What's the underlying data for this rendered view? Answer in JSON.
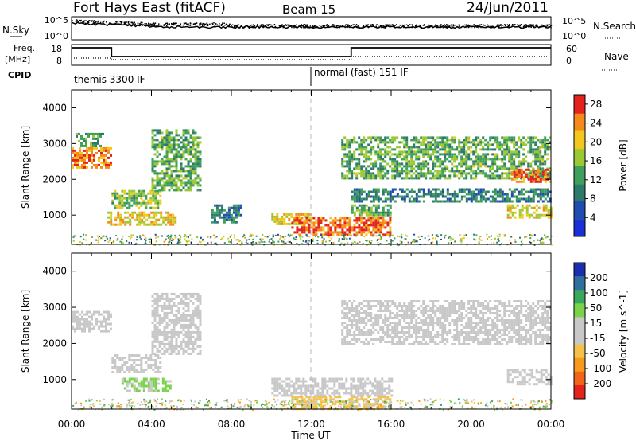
{
  "header": {
    "station": "Fort Hays East (fitACF)",
    "beam": "Beam 15",
    "date": "24/Jun/2011"
  },
  "noise_panel": {
    "left_label": "N.Sky",
    "right_label": "N.Search",
    "left_ticks": [
      "10^5",
      "10^0"
    ],
    "right_ticks": [
      "10^5",
      "10^0"
    ]
  },
  "freq_panel": {
    "left_label_top": "Freq.",
    "left_label_unit": "[MHz]",
    "cpid_label": "CPID",
    "right_label": "Nave",
    "left_ticks": [
      "18",
      "8"
    ],
    "right_ticks": [
      "60",
      "0"
    ]
  },
  "cpid": {
    "segments": [
      {
        "label": "themis 3300 IF",
        "start_hour": 0,
        "end_hour": 12
      },
      {
        "label": "normal (fast) 151 IF",
        "start_hour": 12,
        "end_hour": 24
      }
    ]
  },
  "time_axis": {
    "xlabel": "Time UT",
    "ticks": [
      "00:00",
      "04:00",
      "08:00",
      "12:00",
      "16:00",
      "20:00",
      "00:00"
    ]
  },
  "chart_data": [
    {
      "type": "heatmap",
      "name": "power",
      "ylabel": "Slant Range [km]",
      "x_range_hours": [
        0,
        24
      ],
      "ylim": [
        180,
        4500
      ],
      "y_ticks": [
        1000,
        2000,
        3000,
        4000
      ],
      "colorbar": {
        "label": "Power [dB]",
        "ticks": [
          4,
          8,
          12,
          16,
          20,
          24,
          28
        ],
        "range": [
          0,
          30
        ]
      },
      "features": [
        {
          "t": [
            0,
            2
          ],
          "r": [
            2350,
            2900
          ],
          "level": 24
        },
        {
          "t": [
            0.2,
            1.6
          ],
          "r": [
            2900,
            3300
          ],
          "level": 12
        },
        {
          "t": [
            2,
            4.5
          ],
          "r": [
            1200,
            1700
          ],
          "level": 16
        },
        {
          "t": [
            4,
            6.5
          ],
          "r": [
            1700,
            3400
          ],
          "level": 14
        },
        {
          "t": [
            1.8,
            5.2
          ],
          "r": [
            750,
            1100
          ],
          "level": 20
        },
        {
          "t": [
            7,
            8.5
          ],
          "r": [
            800,
            1300
          ],
          "level": 10
        },
        {
          "t": [
            10,
            12
          ],
          "r": [
            750,
            1050
          ],
          "level": 20
        },
        {
          "t": [
            11,
            16
          ],
          "r": [
            450,
            950
          ],
          "level": 26
        },
        {
          "t": [
            14,
            16
          ],
          "r": [
            1000,
            1300
          ],
          "level": 14
        },
        {
          "t": [
            14,
            24
          ],
          "r": [
            1400,
            1750
          ],
          "level": 10
        },
        {
          "t": [
            13.5,
            24
          ],
          "r": [
            2000,
            3200
          ],
          "level": 14
        },
        {
          "t": [
            22,
            24
          ],
          "r": [
            1900,
            2300
          ],
          "level": 26
        },
        {
          "t": [
            21.8,
            24
          ],
          "r": [
            900,
            1300
          ],
          "level": 20
        }
      ]
    },
    {
      "type": "heatmap",
      "name": "velocity",
      "ylabel": "Slant Range [km]",
      "x_range_hours": [
        0,
        24
      ],
      "ylim": [
        180,
        4500
      ],
      "y_ticks": [
        1000,
        2000,
        3000,
        4000
      ],
      "colorbar": {
        "label": "Velocity [m s^-1]",
        "ticks": [
          200,
          100,
          50,
          15,
          -15,
          -50,
          -100,
          -200
        ],
        "range": [
          -250,
          250
        ]
      },
      "features": [
        {
          "t": [
            0,
            2
          ],
          "r": [
            2350,
            2900
          ],
          "level": 0
        },
        {
          "t": [
            2,
            4.5
          ],
          "r": [
            1200,
            1700
          ],
          "level": -20
        },
        {
          "t": [
            4,
            6.5
          ],
          "r": [
            1700,
            3400
          ],
          "level": 0
        },
        {
          "t": [
            2.5,
            5
          ],
          "r": [
            700,
            1050
          ],
          "level": 60
        },
        {
          "t": [
            10,
            16
          ],
          "r": [
            550,
            1050
          ],
          "level": 0
        },
        {
          "t": [
            11,
            16
          ],
          "r": [
            200,
            550
          ],
          "level": -60
        },
        {
          "t": [
            13.5,
            24
          ],
          "r": [
            2000,
            3200
          ],
          "level": 0
        },
        {
          "t": [
            21.8,
            24
          ],
          "r": [
            900,
            1300
          ],
          "level": 0
        }
      ]
    }
  ]
}
